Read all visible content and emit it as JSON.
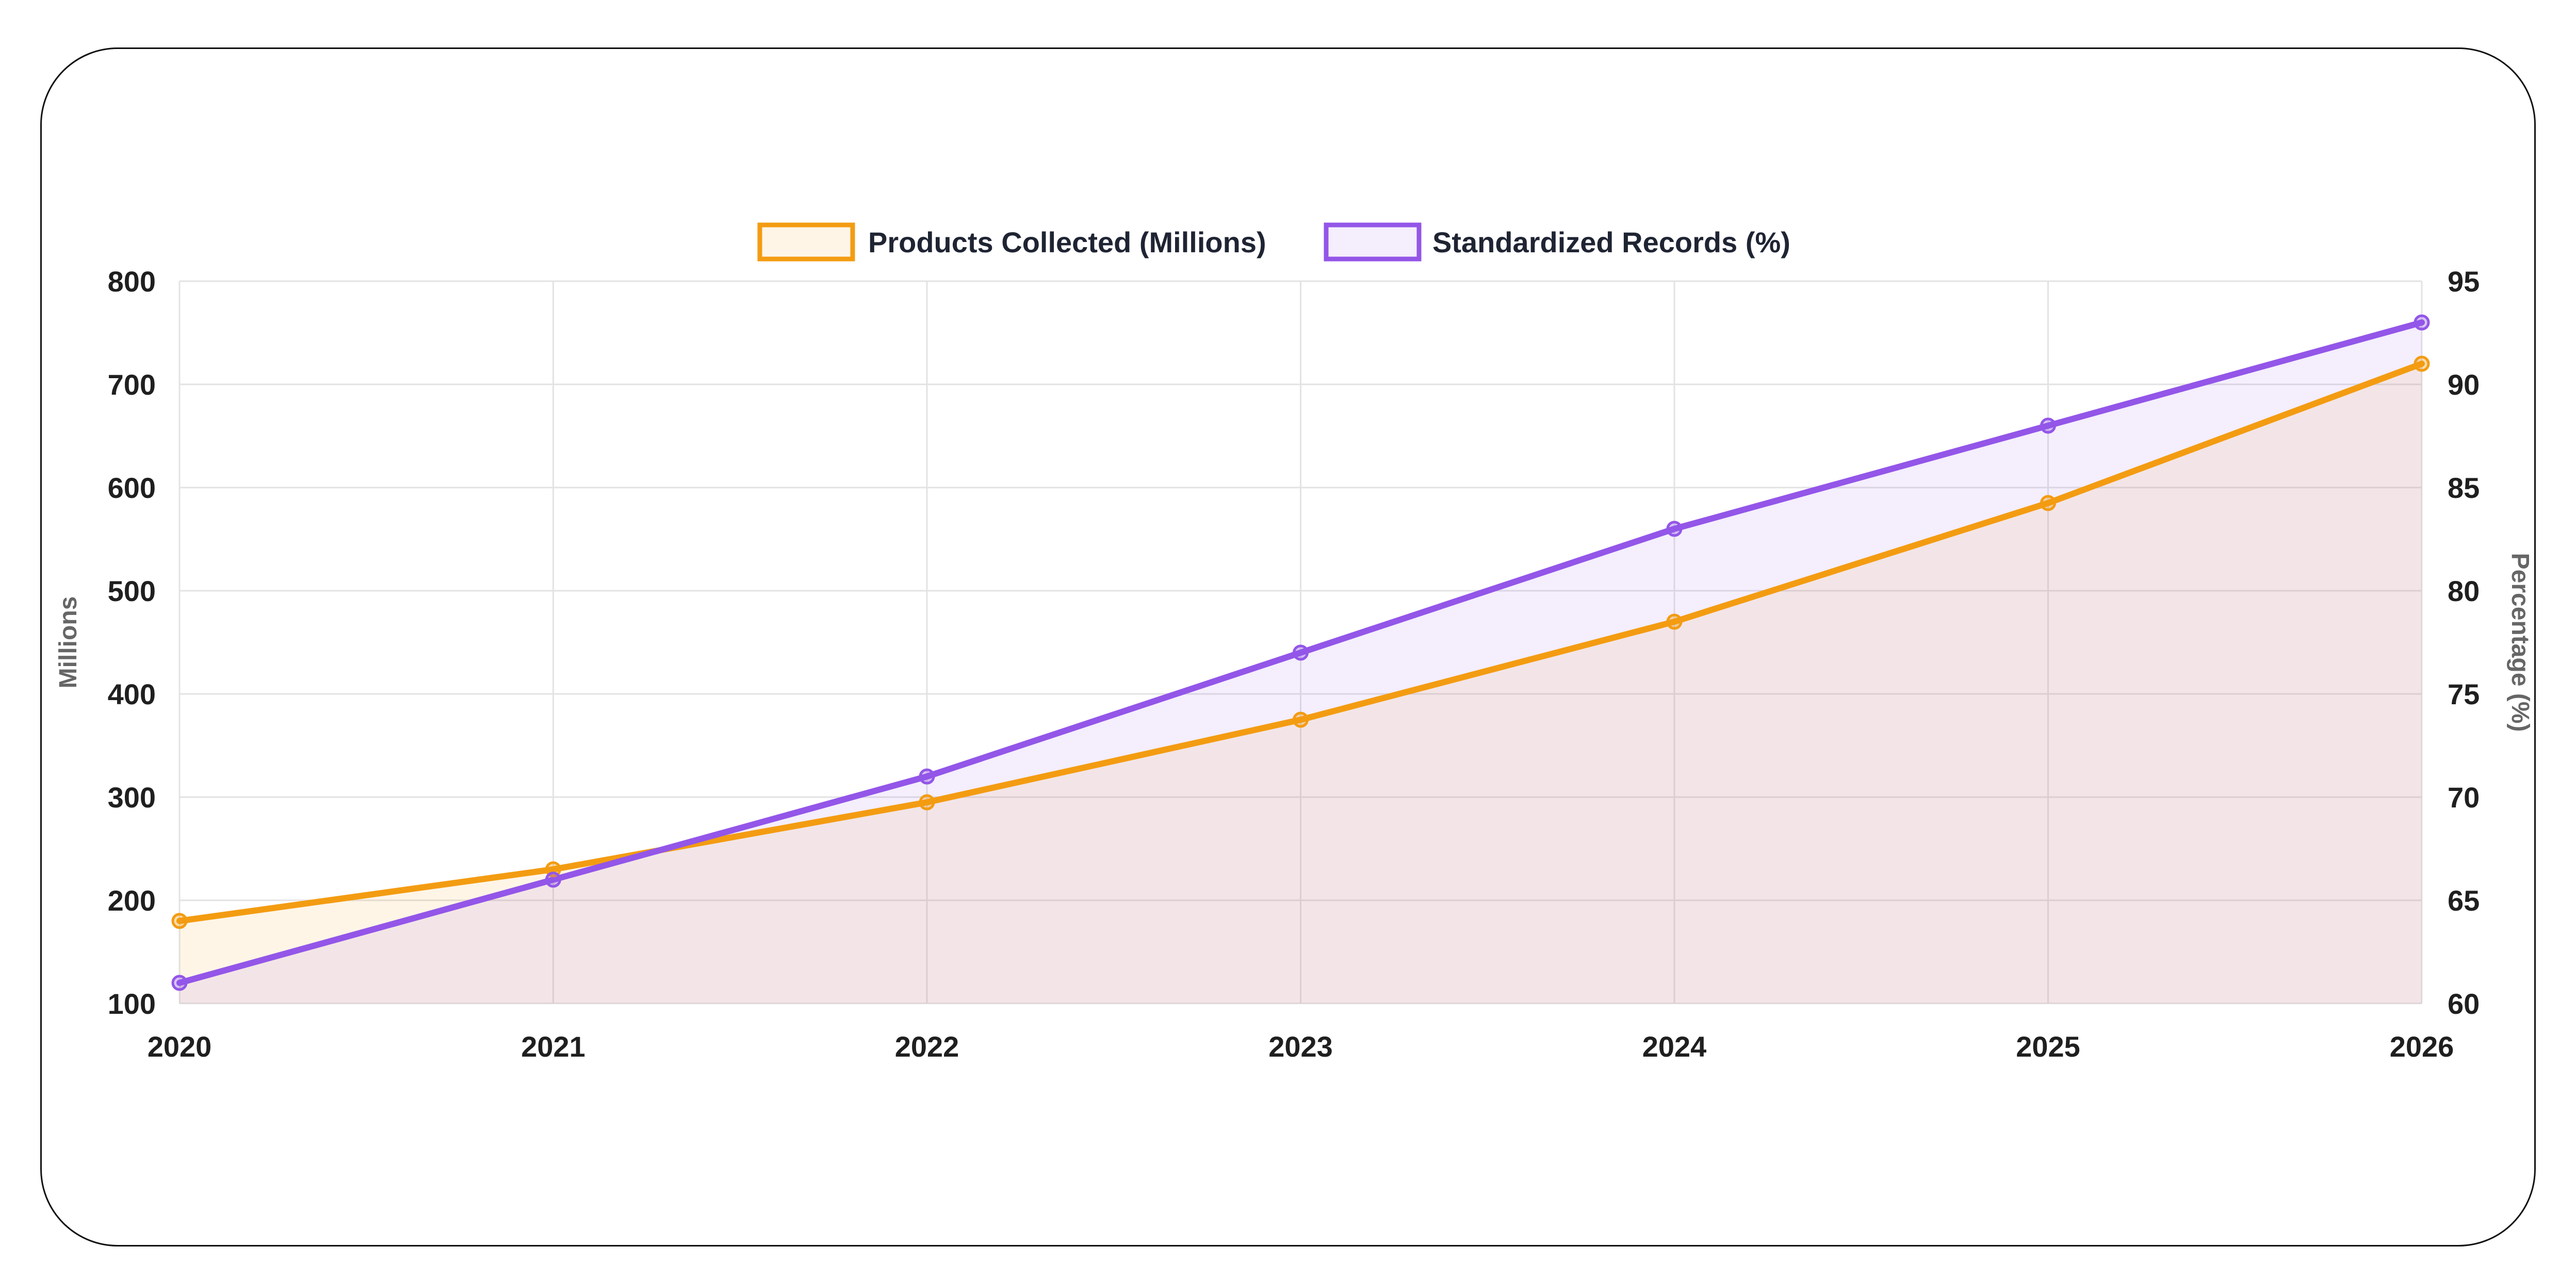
{
  "chart_data": {
    "type": "line",
    "x": [
      "2020",
      "2021",
      "2022",
      "2023",
      "2024",
      "2025",
      "2026"
    ],
    "series": [
      {
        "name": "Products Collected (Millions)",
        "axis": "left",
        "values": [
          180,
          230,
          295,
          375,
          470,
          585,
          720
        ],
        "color": "#f39c12",
        "fill": "rgba(243,156,18,0.10)"
      },
      {
        "name": "Standardized Records (%)",
        "axis": "right",
        "values": [
          61,
          66,
          71,
          77,
          83,
          88,
          93
        ],
        "color": "#9356e8",
        "fill": "rgba(147,86,232,0.10)"
      }
    ],
    "y_left": {
      "label": "Millions",
      "ylim": [
        100,
        800
      ],
      "ticks": [
        "100",
        "200",
        "300",
        "400",
        "500",
        "600",
        "700",
        "800"
      ]
    },
    "y_right": {
      "label": "Percentage (%)",
      "ylim": [
        60,
        95
      ],
      "ticks": [
        "60",
        "65",
        "70",
        "75",
        "80",
        "85",
        "90",
        "95"
      ]
    },
    "grid": true,
    "legend_position": "top-center"
  }
}
